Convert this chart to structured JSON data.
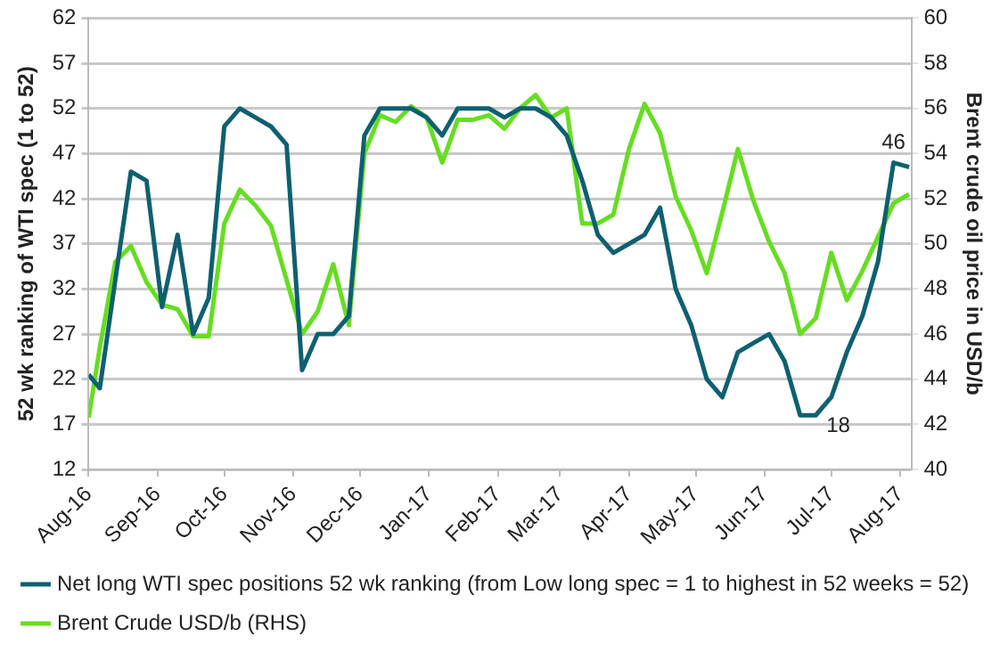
{
  "chart_data": {
    "type": "line",
    "ylabel": "52 wk ranking of WTI spec (1 to 52)",
    "y2label": "Brent crude oil price in USD/b",
    "x": [
      "2016-08-01",
      "2016-08-06",
      "2016-08-13",
      "2016-08-20",
      "2016-08-27",
      "2016-09-03",
      "2016-09-10",
      "2016-09-17",
      "2016-09-24",
      "2016-10-01",
      "2016-10-08",
      "2016-10-15",
      "2016-10-22",
      "2016-10-29",
      "2016-11-05",
      "2016-11-12",
      "2016-11-19",
      "2016-11-26",
      "2016-12-03",
      "2016-12-10",
      "2016-12-17",
      "2016-12-24",
      "2016-12-31",
      "2017-01-07",
      "2017-01-14",
      "2017-01-21",
      "2017-01-28",
      "2017-02-04",
      "2017-02-11",
      "2017-02-18",
      "2017-02-25",
      "2017-03-04",
      "2017-03-11",
      "2017-03-18",
      "2017-03-25",
      "2017-04-01",
      "2017-04-08",
      "2017-04-15",
      "2017-04-22",
      "2017-04-29",
      "2017-05-06",
      "2017-05-13",
      "2017-05-20",
      "2017-05-27",
      "2017-06-03",
      "2017-06-10",
      "2017-06-17",
      "2017-06-24",
      "2017-07-01",
      "2017-07-08",
      "2017-07-15",
      "2017-07-22",
      "2017-07-29",
      "2017-08-05"
    ],
    "series": [
      {
        "name": "Net long WTI spec positions 52 wk ranking (from Low long spec = 1 to highest in 52 weeks = 52)",
        "color": "#0e6070",
        "values": [
          22.5,
          21,
          33,
          45,
          44,
          30,
          38,
          27,
          31,
          50,
          52,
          51,
          50,
          48,
          23,
          27,
          27,
          29,
          49,
          52,
          52,
          52,
          51,
          49,
          52,
          52,
          52,
          51,
          52,
          52,
          51,
          49,
          44,
          38,
          36,
          37,
          38,
          41,
          32,
          28,
          22,
          20,
          25,
          26,
          27,
          24,
          18,
          18,
          20,
          25,
          29,
          35,
          46,
          45.5
        ]
      },
      {
        "name": "Brent Crude USD/b (RHS)",
        "color": "#66dd22",
        "axis": "y2",
        "values": [
          42.3,
          45.4,
          49.2,
          49.9,
          48.3,
          47.3,
          47.1,
          45.9,
          45.9,
          50.9,
          52.4,
          51.7,
          50.8,
          48.4,
          46,
          47,
          49.1,
          46.4,
          54,
          55.7,
          55.4,
          56.1,
          55.6,
          53.6,
          55.5,
          55.5,
          55.7,
          55.1,
          56,
          56.6,
          55.6,
          56,
          50.9,
          50.9,
          51.3,
          54.2,
          56.2,
          54.9,
          52.1,
          50.6,
          48.7,
          51.4,
          54.2,
          51.9,
          50.1,
          48.7,
          46,
          46.7,
          49.6,
          47.5,
          48.8,
          50.3,
          51.8,
          52.2
        ]
      }
    ],
    "xlim": [
      "2016-08-01",
      "2017-08-06"
    ],
    "xticks": [
      {
        "value": "2016-08-01",
        "label": "Aug-16"
      },
      {
        "value": "2016-09-01",
        "label": "Sep-16"
      },
      {
        "value": "2016-10-01",
        "label": "Oct-16"
      },
      {
        "value": "2016-11-01",
        "label": "Nov-16"
      },
      {
        "value": "2016-12-01",
        "label": "Dec-16"
      },
      {
        "value": "2017-01-01",
        "label": "Jan-17"
      },
      {
        "value": "2017-02-01",
        "label": "Feb-17"
      },
      {
        "value": "2017-03-01",
        "label": "Mar-17"
      },
      {
        "value": "2017-04-01",
        "label": "Apr-17"
      },
      {
        "value": "2017-05-01",
        "label": "May-17"
      },
      {
        "value": "2017-06-01",
        "label": "Jun-17"
      },
      {
        "value": "2017-07-01",
        "label": "Jul-17"
      },
      {
        "value": "2017-08-01",
        "label": "Aug-17"
      }
    ],
    "ylim": [
      12,
      62
    ],
    "yticks": [
      12,
      17,
      22,
      27,
      32,
      37,
      42,
      47,
      52,
      57,
      62
    ],
    "y2lim": [
      40,
      60
    ],
    "y2ticks": [
      40,
      42,
      44,
      46,
      48,
      50,
      52,
      54,
      56,
      58,
      60
    ],
    "annotations": [
      {
        "text": "46",
        "x": "2017-07-29",
        "y": 46
      },
      {
        "text": "18",
        "x": "2017-06-24",
        "y": 18
      }
    ],
    "grid": "y",
    "legend": "bottom",
    "marker": "none",
    "line_style": "solid"
  }
}
